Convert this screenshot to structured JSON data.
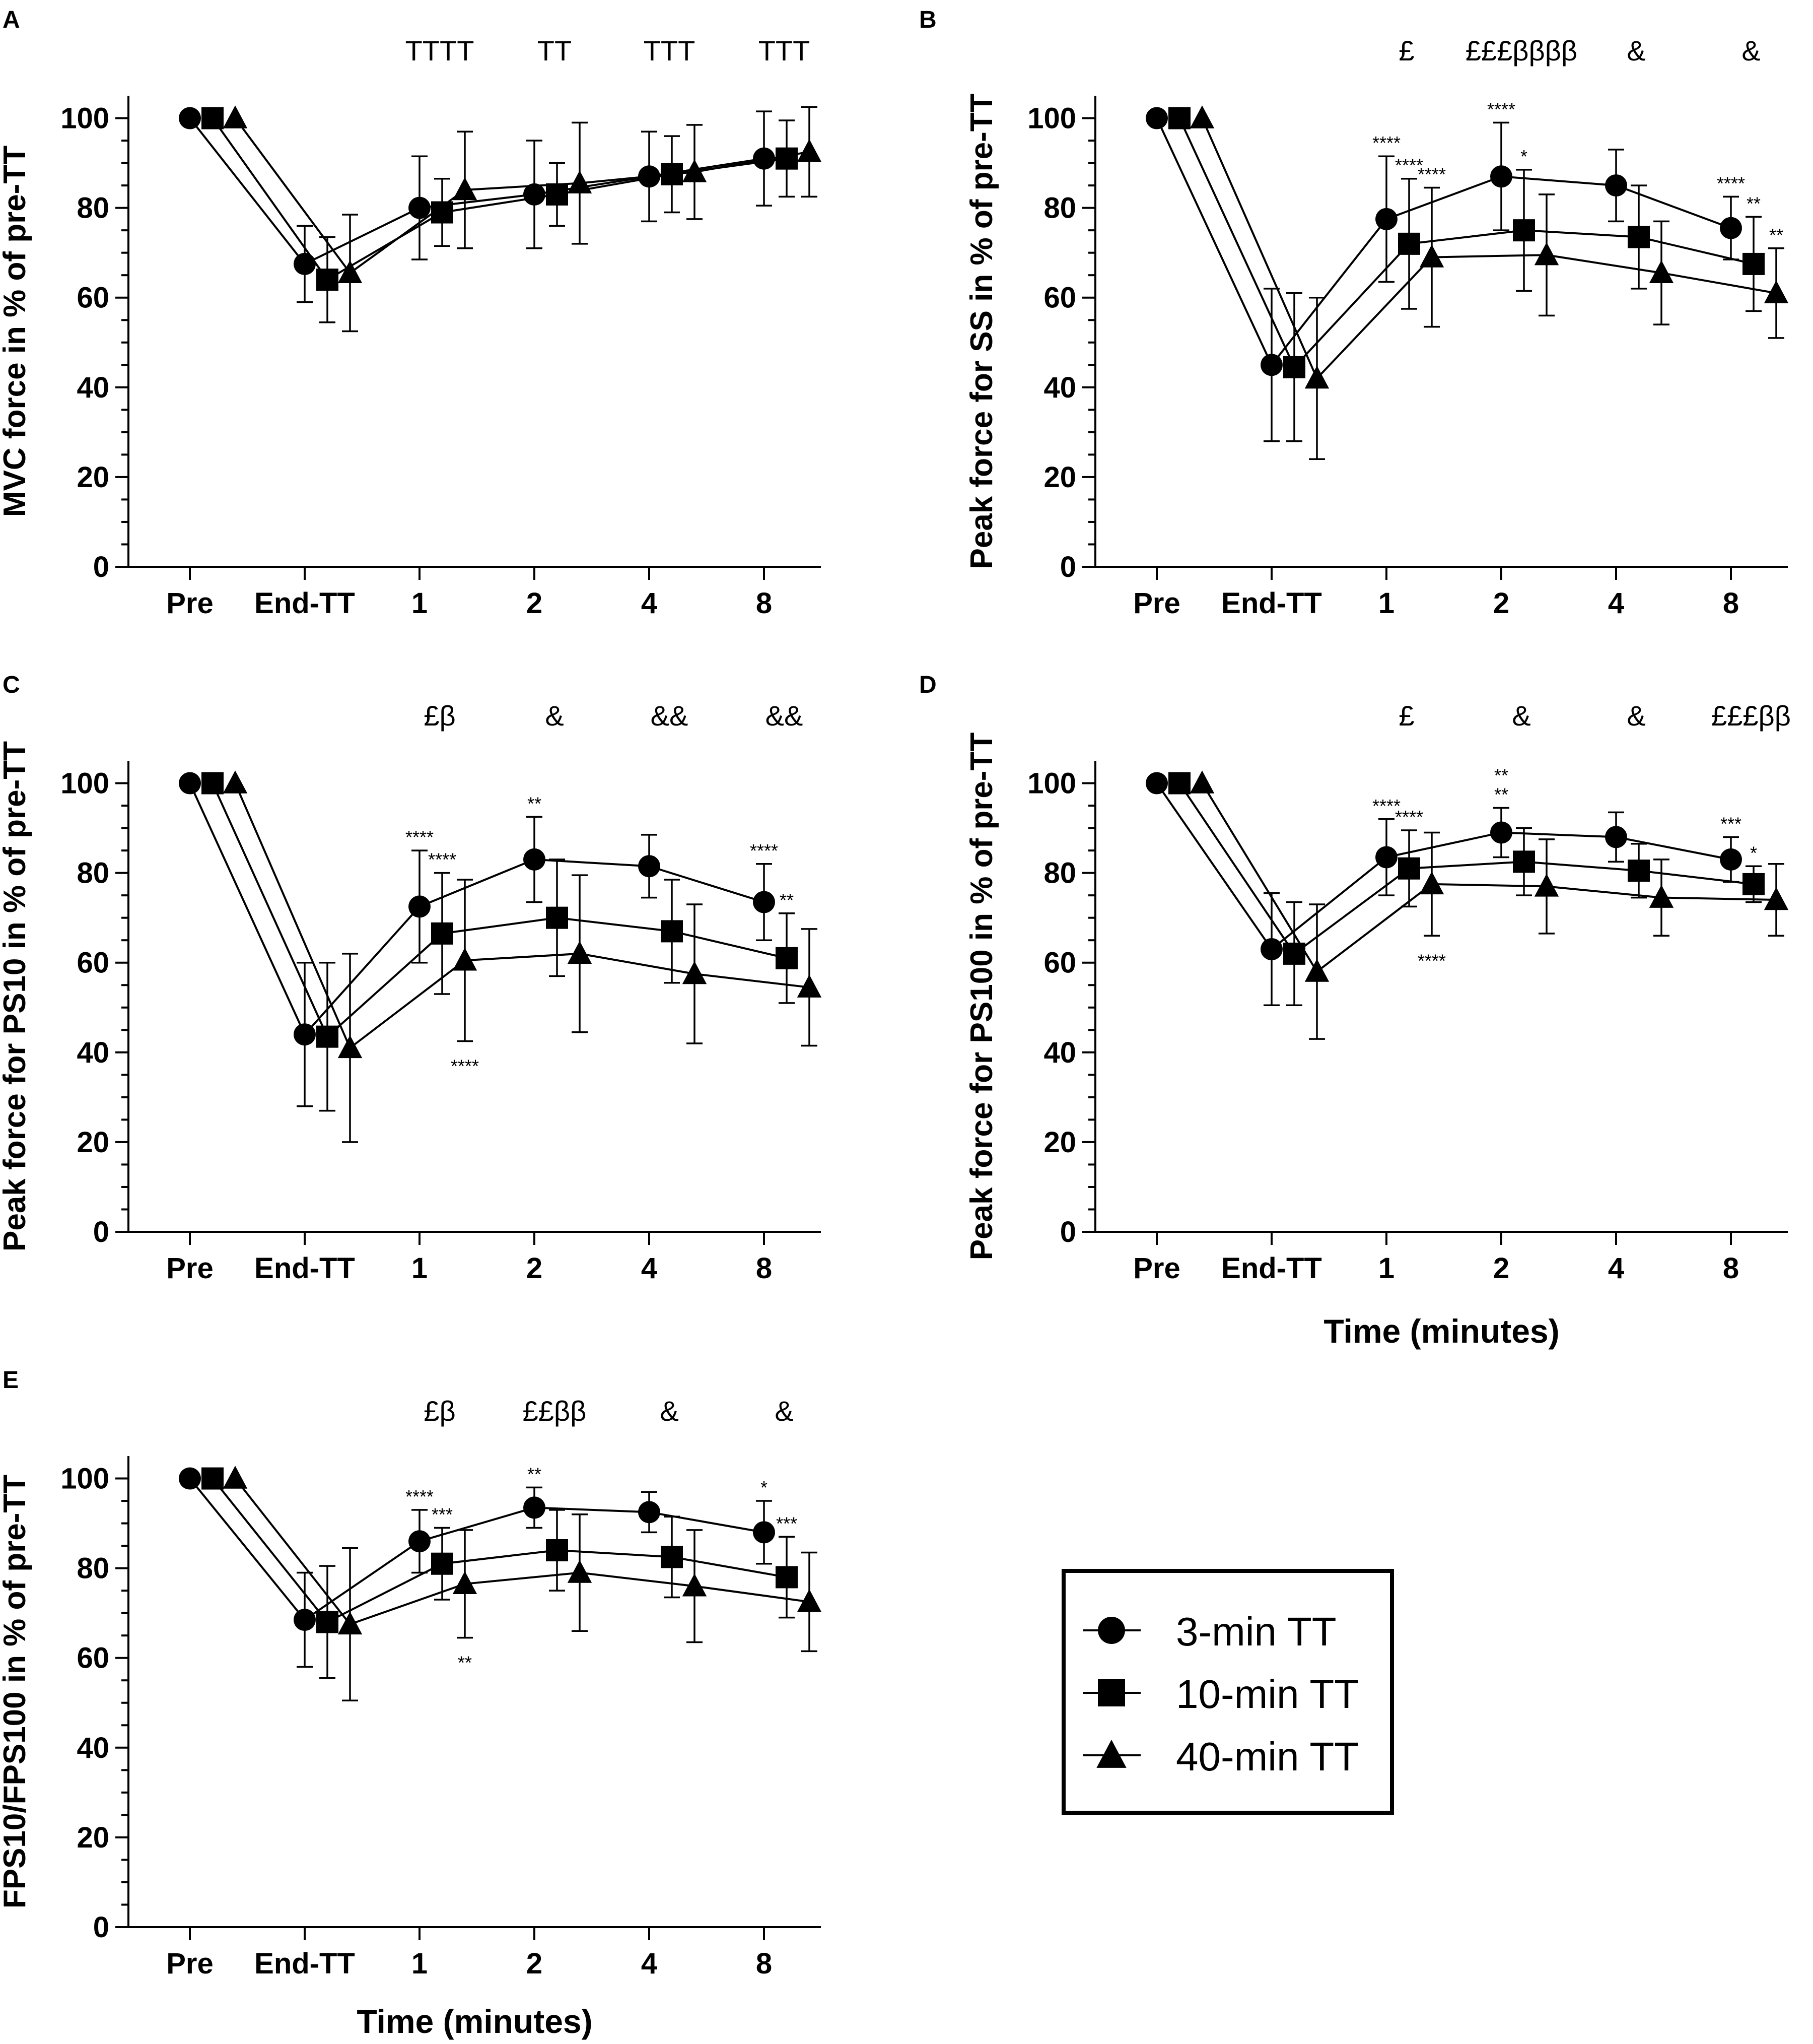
{
  "chart_data": [
    {
      "type": "line",
      "panel": "A",
      "title": "",
      "xlabel": "",
      "ylabel": "MVC force in % of pre-TT",
      "categories": [
        "Pre",
        "End-TT",
        "1",
        "2",
        "4",
        "8"
      ],
      "ylim": [
        0,
        105
      ],
      "yticks": [
        0,
        20,
        40,
        60,
        80,
        100
      ],
      "series": [
        {
          "name": "3-min TT",
          "marker": "circle",
          "values": [
            100,
            67.5,
            80,
            83,
            87,
            91
          ],
          "errors": [
            0,
            8.5,
            11.5,
            12,
            10,
            10.5
          ]
        },
        {
          "name": "10-min TT",
          "marker": "square",
          "values": [
            100,
            64,
            79,
            83,
            87.5,
            91
          ],
          "errors": [
            0,
            9.5,
            7.5,
            7,
            8.5,
            8.5
          ]
        },
        {
          "name": "40-min TT",
          "marker": "triangle",
          "values": [
            100,
            65.5,
            84,
            85.5,
            88,
            92.5
          ],
          "errors": [
            0,
            13,
            13,
            13.5,
            10.5,
            10
          ]
        }
      ],
      "top_annotations": [
        {
          "at": 2,
          "text": "ТТТТ"
        },
        {
          "at": 3,
          "text": "ТТ"
        },
        {
          "at": 4,
          "text": "ТТТ"
        },
        {
          "at": 5,
          "text": "ТТТ"
        }
      ],
      "point_annotations": []
    },
    {
      "type": "line",
      "panel": "B",
      "title": "",
      "xlabel": "",
      "ylabel": "Peak force for SS in % of pre-TT",
      "categories": [
        "Pre",
        "End-TT",
        "1",
        "2",
        "4",
        "8"
      ],
      "ylim": [
        0,
        105
      ],
      "yticks": [
        0,
        20,
        40,
        60,
        80,
        100
      ],
      "series": [
        {
          "name": "3-min TT",
          "marker": "circle",
          "values": [
            100,
            45,
            77.5,
            87,
            85,
            75.5
          ],
          "errors": [
            0,
            17,
            14,
            12,
            8,
            7
          ]
        },
        {
          "name": "10-min TT",
          "marker": "square",
          "values": [
            100,
            44.5,
            72,
            75,
            73.5,
            67.5
          ],
          "errors": [
            0,
            16.5,
            14.5,
            13.5,
            11.5,
            10.5
          ]
        },
        {
          "name": "40-min TT",
          "marker": "triangle",
          "values": [
            100,
            42,
            69,
            69.5,
            65.5,
            61
          ],
          "errors": [
            0,
            18,
            15.5,
            13.5,
            11.5,
            10
          ]
        }
      ],
      "top_annotations": [
        {
          "at": 2,
          "text": "£"
        },
        {
          "at": 3,
          "text": "£££ββββ"
        },
        {
          "at": 4,
          "text": "&"
        },
        {
          "at": 5,
          "text": "&"
        }
      ],
      "point_annotations": [
        {
          "at": 2,
          "series": 0,
          "text": "****",
          "pos": "above"
        },
        {
          "at": 2,
          "series": 1,
          "text": "****",
          "pos": "above"
        },
        {
          "at": 2,
          "series": 2,
          "text": "****",
          "pos": "above"
        },
        {
          "at": 3,
          "series": 0,
          "text": "****",
          "pos": "above"
        },
        {
          "at": 3,
          "series": 1,
          "text": "*",
          "pos": "above"
        },
        {
          "at": 5,
          "series": 0,
          "text": "****",
          "pos": "above"
        },
        {
          "at": 5,
          "series": 1,
          "text": "**",
          "pos": "above"
        },
        {
          "at": 5,
          "series": 2,
          "text": "**",
          "pos": "above"
        }
      ]
    },
    {
      "type": "line",
      "panel": "C",
      "title": "",
      "xlabel": "",
      "ylabel": "Peak force for PS10 in % of pre-TT",
      "categories": [
        "Pre",
        "End-TT",
        "1",
        "2",
        "4",
        "8"
      ],
      "ylim": [
        0,
        105
      ],
      "yticks": [
        0,
        20,
        40,
        60,
        80,
        100
      ],
      "series": [
        {
          "name": "3-min TT",
          "marker": "circle",
          "values": [
            100,
            44,
            72.5,
            83,
            81.5,
            73.5
          ],
          "errors": [
            0,
            16,
            12.5,
            9.5,
            7,
            8.5
          ]
        },
        {
          "name": "10-min TT",
          "marker": "square",
          "values": [
            100,
            43.5,
            66.5,
            70,
            67,
            61
          ],
          "errors": [
            0,
            16.5,
            13.5,
            13,
            11.5,
            10
          ]
        },
        {
          "name": "40-min TT",
          "marker": "triangle",
          "values": [
            100,
            41,
            60.5,
            62,
            57.5,
            54.5
          ],
          "errors": [
            0,
            21,
            18,
            17.5,
            15.5,
            13
          ]
        }
      ],
      "top_annotations": [
        {
          "at": 2,
          "text": "£β"
        },
        {
          "at": 3,
          "text": "&"
        },
        {
          "at": 4,
          "text": "&&"
        },
        {
          "at": 5,
          "text": "&&"
        }
      ],
      "point_annotations": [
        {
          "at": 2,
          "series": 0,
          "text": "****",
          "pos": "above"
        },
        {
          "at": 2,
          "series": 1,
          "text": "****",
          "pos": "above"
        },
        {
          "at": 2,
          "series": 2,
          "text": "****",
          "pos": "below"
        },
        {
          "at": 3,
          "series": 0,
          "text": "**",
          "pos": "above"
        },
        {
          "at": 5,
          "series": 0,
          "text": "****",
          "pos": "above"
        },
        {
          "at": 5,
          "series": 1,
          "text": "**",
          "pos": "above"
        }
      ]
    },
    {
      "type": "line",
      "panel": "D",
      "title": "",
      "xlabel": "Time (minutes)",
      "ylabel": "Peak force for PS100 in % of pre-TT",
      "categories": [
        "Pre",
        "End-TT",
        "1",
        "2",
        "4",
        "8"
      ],
      "ylim": [
        0,
        105
      ],
      "yticks": [
        0,
        20,
        40,
        60,
        80,
        100
      ],
      "series": [
        {
          "name": "3-min TT",
          "marker": "circle",
          "values": [
            100,
            63,
            83.5,
            89,
            88,
            83
          ],
          "errors": [
            0,
            12.5,
            8.5,
            5.5,
            5.5,
            5
          ]
        },
        {
          "name": "10-min TT",
          "marker": "square",
          "values": [
            100,
            62,
            81,
            82.5,
            80.5,
            77.5
          ],
          "errors": [
            0,
            11.5,
            8.5,
            7.5,
            6,
            4
          ]
        },
        {
          "name": "40-min TT",
          "marker": "triangle",
          "values": [
            100,
            58,
            77.5,
            77,
            74.5,
            74
          ],
          "errors": [
            0,
            15,
            11.5,
            10.5,
            8.5,
            8
          ]
        }
      ],
      "top_annotations": [
        {
          "at": 2,
          "text": "£"
        },
        {
          "at": 3,
          "text": "&"
        },
        {
          "at": 4,
          "text": "&"
        },
        {
          "at": 5,
          "text": "£££ββ"
        }
      ],
      "point_annotations": [
        {
          "at": 2,
          "series": 0,
          "text": "****",
          "pos": "above"
        },
        {
          "at": 2,
          "series": 1,
          "text": "****",
          "pos": "above"
        },
        {
          "at": 2,
          "series": 2,
          "text": "****",
          "pos": "below"
        },
        {
          "at": 3,
          "series": 0,
          "text": "**",
          "pos": "above"
        },
        {
          "at": 3,
          "series": 0,
          "text": "**",
          "pos": "above2"
        },
        {
          "at": 5,
          "series": 0,
          "text": "***",
          "pos": "above"
        },
        {
          "at": 5,
          "series": 1,
          "text": "*",
          "pos": "above"
        }
      ]
    },
    {
      "type": "line",
      "panel": "E",
      "title": "",
      "xlabel": "Time (minutes)",
      "ylabel": "FPS10/FPS100 in % of pre-TT",
      "categories": [
        "Pre",
        "End-TT",
        "1",
        "2",
        "4",
        "8"
      ],
      "ylim": [
        0,
        105
      ],
      "yticks": [
        0,
        20,
        40,
        60,
        80,
        100
      ],
      "series": [
        {
          "name": "3-min TT",
          "marker": "circle",
          "values": [
            100,
            68.5,
            86,
            93.5,
            92.5,
            88
          ],
          "errors": [
            0,
            10.5,
            7,
            4.5,
            4.5,
            7
          ]
        },
        {
          "name": "10-min TT",
          "marker": "square",
          "values": [
            100,
            68,
            81,
            84,
            82.5,
            78
          ],
          "errors": [
            0,
            12.5,
            8,
            9,
            9,
            9
          ]
        },
        {
          "name": "40-min TT",
          "marker": "triangle",
          "values": [
            100,
            67.5,
            76.5,
            79,
            76,
            72.5
          ],
          "errors": [
            0,
            17,
            12,
            13,
            12.5,
            11
          ]
        }
      ],
      "top_annotations": [
        {
          "at": 2,
          "text": "£β"
        },
        {
          "at": 3,
          "text": "££ββ"
        },
        {
          "at": 4,
          "text": "&"
        },
        {
          "at": 5,
          "text": "&"
        }
      ],
      "point_annotations": [
        {
          "at": 2,
          "series": 0,
          "text": "****",
          "pos": "above"
        },
        {
          "at": 2,
          "series": 1,
          "text": "***",
          "pos": "above"
        },
        {
          "at": 2,
          "series": 2,
          "text": "**",
          "pos": "below"
        },
        {
          "at": 3,
          "series": 0,
          "text": "**",
          "pos": "above"
        },
        {
          "at": 5,
          "series": 0,
          "text": "*",
          "pos": "above"
        },
        {
          "at": 5,
          "series": 1,
          "text": "***",
          "pos": "above"
        }
      ]
    }
  ],
  "legend": {
    "placement": "bottom-right",
    "entries": [
      {
        "label": "3-min TT",
        "marker": "circle"
      },
      {
        "label": "10-min TT",
        "marker": "square"
      },
      {
        "label": "40-min TT",
        "marker": "triangle"
      }
    ]
  }
}
